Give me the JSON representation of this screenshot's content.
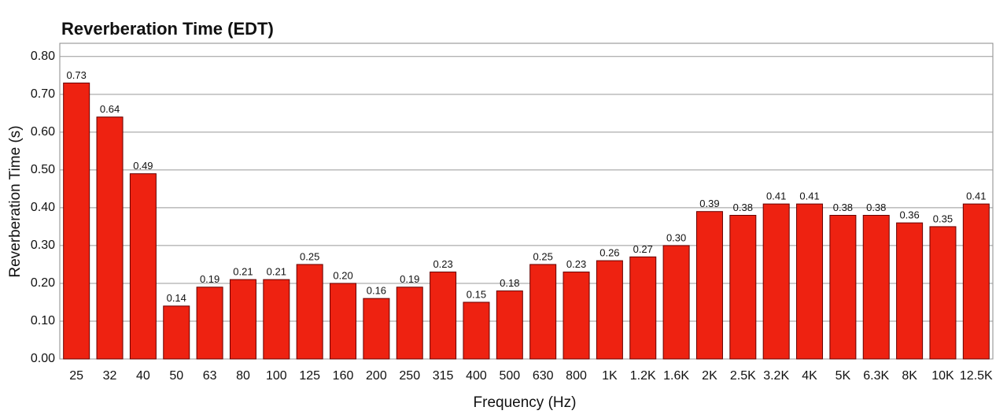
{
  "chart_data": {
    "type": "bar",
    "title": "Reverberation Time (EDT)",
    "x_label": "Frequency (Hz)",
    "y_label": "Reverberation Time (s)",
    "categories": [
      "25",
      "32",
      "40",
      "50",
      "63",
      "80",
      "100",
      "125",
      "160",
      "200",
      "250",
      "315",
      "400",
      "500",
      "630",
      "800",
      "1K",
      "1.2K",
      "1.6K",
      "2K",
      "2.5K",
      "3.2K",
      "4K",
      "5K",
      "6.3K",
      "8K",
      "10K",
      "12.5K"
    ],
    "values": [
      0.73,
      0.64,
      0.49,
      0.14,
      0.19,
      0.21,
      0.21,
      0.25,
      0.2,
      0.16,
      0.19,
      0.23,
      0.15,
      0.18,
      0.25,
      0.23,
      0.26,
      0.27,
      0.3,
      0.39,
      0.38,
      0.41,
      0.41,
      0.38,
      0.38,
      0.36,
      0.35,
      0.41
    ],
    "value_labels": [
      "0.73",
      "0.64",
      "0.49",
      "0.14",
      "0.19",
      "0.21",
      "0.21",
      "0.25",
      "0.20",
      "0.16",
      "0.19",
      "0.23",
      "0.15",
      "0.18",
      "0.25",
      "0.23",
      "0.26",
      "0.27",
      "0.30",
      "0.39",
      "0.38",
      "0.41",
      "0.41",
      "0.38",
      "0.38",
      "0.36",
      "0.35",
      "0.41"
    ],
    "color": "#ee2211",
    "ylim": [
      0,
      0.835
    ],
    "yticks": [
      {
        "value": 0,
        "label": "0.00"
      },
      {
        "value": 0.1,
        "label": "0.10"
      },
      {
        "value": 0.2,
        "label": "0.20"
      },
      {
        "value": 0.3,
        "label": "0.30"
      },
      {
        "value": 0.4,
        "label": "0.40"
      },
      {
        "value": 0.5,
        "label": "0.50"
      },
      {
        "value": 0.6,
        "label": "0.60"
      },
      {
        "value": 0.7,
        "label": "0.70"
      },
      {
        "value": 0.8,
        "label": "0.80"
      }
    ],
    "grid": true
  }
}
